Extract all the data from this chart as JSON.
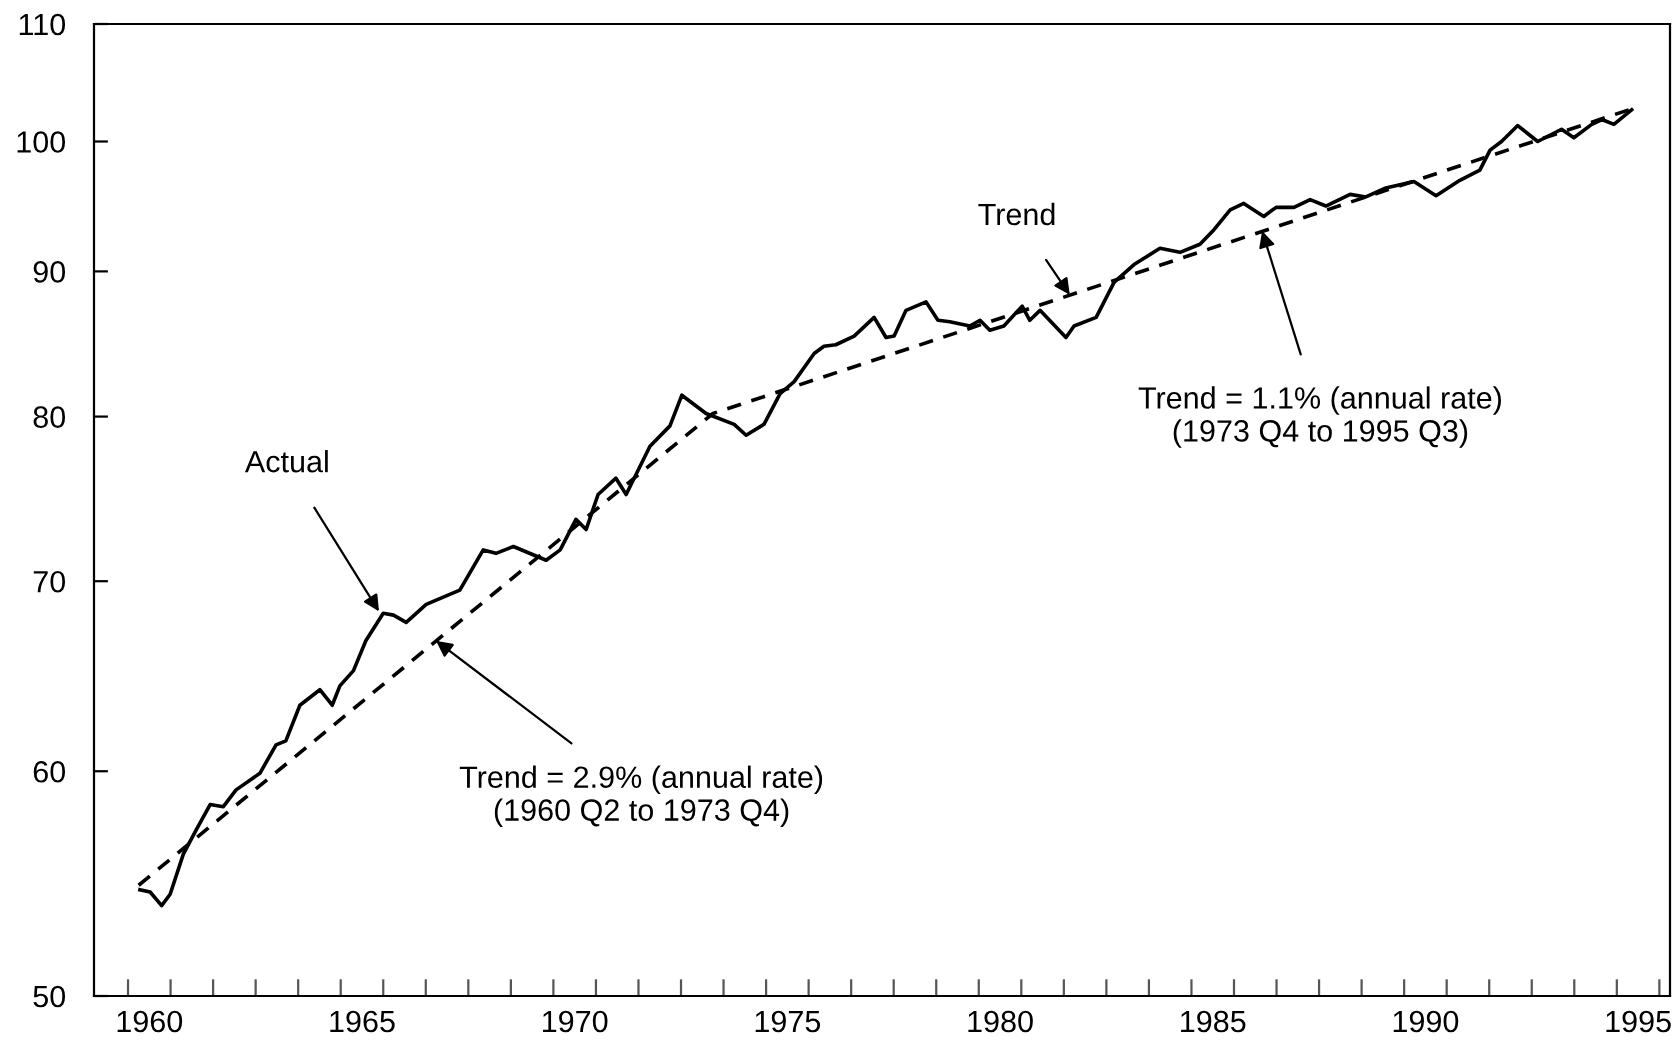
{
  "chart_data": {
    "type": "line",
    "log": "y",
    "xlim": [
      1959.2,
      1996.25
    ],
    "ylim": [
      50,
      110
    ],
    "yticks": [
      50,
      60,
      70,
      80,
      90,
      100,
      110
    ],
    "xticks": [
      {
        "value": 1960,
        "label": null
      },
      {
        "value": 1961,
        "label": null
      },
      {
        "value": 1962,
        "label": null
      },
      {
        "value": 1963,
        "label": null
      },
      {
        "value": 1964,
        "label": null
      },
      {
        "value": 1965,
        "label": null
      },
      {
        "value": 1966,
        "label": null
      },
      {
        "value": 1967,
        "label": null
      },
      {
        "value": 1968,
        "label": null
      },
      {
        "value": 1969,
        "label": null
      },
      {
        "value": 1970,
        "label": null
      },
      {
        "value": 1971,
        "label": null
      },
      {
        "value": 1972,
        "label": null
      },
      {
        "value": 1973,
        "label": null
      },
      {
        "value": 1974,
        "label": null
      },
      {
        "value": 1975,
        "label": null
      },
      {
        "value": 1976,
        "label": null
      },
      {
        "value": 1977,
        "label": null
      },
      {
        "value": 1978,
        "label": null
      },
      {
        "value": 1979,
        "label": null
      },
      {
        "value": 1980,
        "label": null
      },
      {
        "value": 1981,
        "label": null
      },
      {
        "value": 1982,
        "label": null
      },
      {
        "value": 1983,
        "label": null
      },
      {
        "value": 1984,
        "label": null
      },
      {
        "value": 1985,
        "label": null
      },
      {
        "value": 1986,
        "label": null
      },
      {
        "value": 1987,
        "label": null
      },
      {
        "value": 1988,
        "label": null
      },
      {
        "value": 1989,
        "label": null
      },
      {
        "value": 1990,
        "label": null
      },
      {
        "value": 1991,
        "label": null
      },
      {
        "value": 1992,
        "label": null
      },
      {
        "value": 1993,
        "label": null
      },
      {
        "value": 1994,
        "label": null
      },
      {
        "value": 1995,
        "label": null
      },
      {
        "value": 1996,
        "label": null
      },
      {
        "value": 1960.5,
        "label": "1960"
      },
      {
        "value": 1965.5,
        "label": "1965"
      },
      {
        "value": 1970.5,
        "label": "1970"
      },
      {
        "value": 1975.5,
        "label": "1975"
      },
      {
        "value": 1980.5,
        "label": "1980"
      },
      {
        "value": 1985.5,
        "label": "1985"
      },
      {
        "value": 1990.5,
        "label": "1990"
      },
      {
        "value": 1995.5,
        "label": "1995"
      }
    ],
    "grid": false,
    "marker": "none",
    "series": [
      {
        "color": "#000000",
        "line_style": "solid",
        "x": [
          1960.28,
          1960.52,
          1960.79,
          1960.99,
          1961.3,
          1961.6,
          1961.93,
          1962.24,
          1962.54,
          1963.1,
          1963.48,
          1963.71,
          1964.04,
          1964.51,
          1964.8,
          1964.98,
          1965.3,
          1965.59,
          1966.0,
          1966.24,
          1966.54,
          1967.01,
          1967.8,
          1968.35,
          1968.65,
          1969.06,
          1969.83,
          1970.16,
          1970.53,
          1970.77,
          1971.05,
          1971.47,
          1971.71,
          1972.27,
          1972.74,
          1973.02,
          1973.59,
          1974.25,
          1974.53,
          1974.95,
          1975.33,
          1975.66,
          1976.13,
          1976.36,
          1976.64,
          1977.07,
          1977.54,
          1977.82,
          1978.01,
          1978.29,
          1978.76,
          1979.04,
          1979.32,
          1979.79,
          1980.03,
          1980.26,
          1980.59,
          1981.02,
          1981.2,
          1981.44,
          1982.05,
          1982.24,
          1982.76,
          1983.18,
          1983.65,
          1984.26,
          1984.73,
          1985.2,
          1985.53,
          1985.91,
          1986.23,
          1986.7,
          1986.99,
          1987.41,
          1987.79,
          1988.16,
          1988.73,
          1989.1,
          1989.57,
          1990.23,
          1990.75,
          1991.31,
          1991.78,
          1992.02,
          1992.29,
          1992.67,
          1993.14,
          1993.7,
          1993.99,
          1994.41,
          1994.65,
          1994.93,
          1995.35
        ],
        "values": [
          54.5,
          54.4,
          53.8,
          54.3,
          56.1,
          57.2,
          58.4,
          58.3,
          59.1,
          59.9,
          61.3,
          61.5,
          63.3,
          64.1,
          63.3,
          64.3,
          65.1,
          66.7,
          68.2,
          68.1,
          67.7,
          68.7,
          69.5,
          71.8,
          71.6,
          72.0,
          71.2,
          71.8,
          73.6,
          73.0,
          75.1,
          76.1,
          75.1,
          78.1,
          79.4,
          81.4,
          80.2,
          79.5,
          78.8,
          79.5,
          81.5,
          82.3,
          84.2,
          84.7,
          84.8,
          85.4,
          86.7,
          85.3,
          85.4,
          87.2,
          87.8,
          86.5,
          86.4,
          86.1,
          86.5,
          85.8,
          86.1,
          87.5,
          86.5,
          87.2,
          85.3,
          86.1,
          86.7,
          89.2,
          90.5,
          91.7,
          91.4,
          92.0,
          93.1,
          94.6,
          95.1,
          94.1,
          94.8,
          94.8,
          95.4,
          94.9,
          95.8,
          95.6,
          96.3,
          96.8,
          95.7,
          96.9,
          97.7,
          99.3,
          100.0,
          101.3,
          100.0,
          101.0,
          100.3,
          101.4,
          101.8,
          101.4,
          102.6
        ]
      },
      {
        "color": "#000000",
        "line_style": "dashed",
        "x": [
          1960.25,
          1973.75,
          1995.45
        ],
        "values": [
          54.7,
          80.2,
          102.8
        ]
      }
    ],
    "annotations": [
      {
        "text": "Actual",
        "x": 1965.9,
        "y": 68.3
      },
      {
        "text": "Trend = 2.9% (annual rate)\n(1960 Q2 to 1973 Q4)",
        "x": 1967.24,
        "y": 66.7
      },
      {
        "text": "Trend",
        "x": 1982.14,
        "y": 88.3
      },
      {
        "text": "Trend = 1.1% (annual rate)\n(1973 Q4 to 1995 Q3)",
        "x": 1986.66,
        "y": 93.0
      }
    ]
  }
}
